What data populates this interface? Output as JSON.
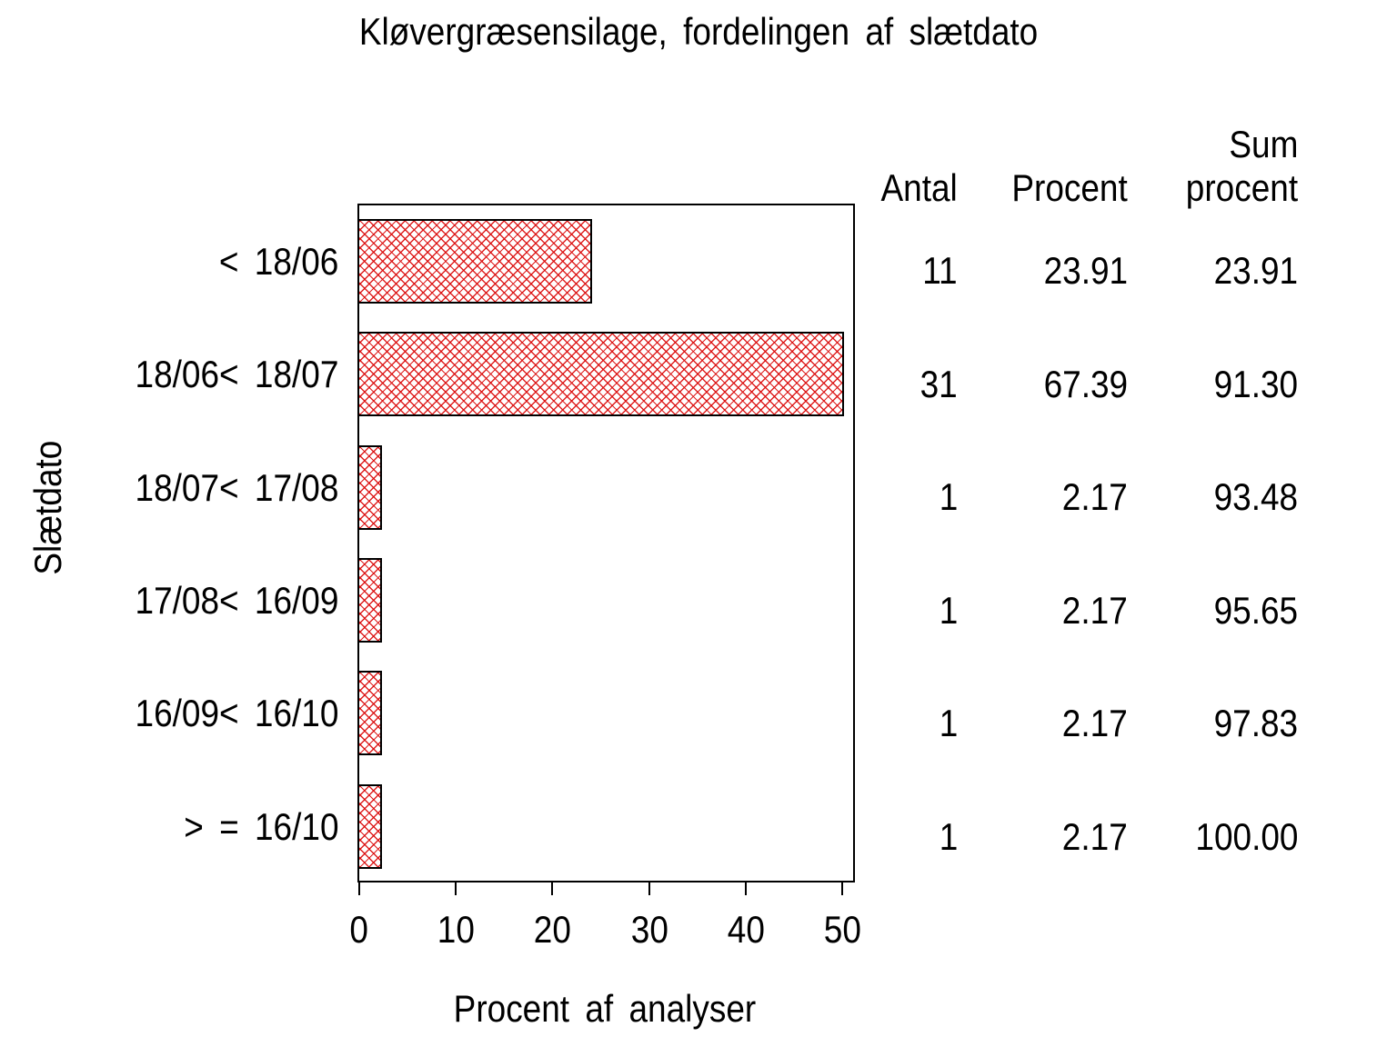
{
  "chart_data": {
    "type": "bar",
    "orientation": "horizontal",
    "title": "Kløvergræsensilage,  fordelingen  af  slætdato",
    "xlabel": "Procent  af  analyser",
    "ylabel": "Slætdato",
    "xlim": [
      0,
      50
    ],
    "x_ticks": [
      "0",
      "10",
      "20",
      "30",
      "40",
      "50"
    ],
    "grid": "off",
    "legend": "none",
    "bar_style": "red diagonal crosshatch fill with black outline",
    "bar_color": "#db0d0d",
    "categories": [
      "< 18/06",
      "18/06< 18/07",
      "18/07< 17/08",
      "17/08< 16/09",
      "16/09< 16/10",
      "> = 16/10"
    ],
    "series": [
      {
        "name": "Antal",
        "values": [
          11,
          31,
          1,
          1,
          1,
          1
        ],
        "display": [
          "11",
          "31",
          "1",
          "1",
          "1",
          "1"
        ]
      },
      {
        "name": "Procent",
        "values": [
          23.91,
          67.39,
          2.17,
          2.17,
          2.17,
          2.17
        ],
        "display": [
          "23.91",
          "67.39",
          "2.17",
          "2.17",
          "2.17",
          "2.17"
        ]
      },
      {
        "name": "Sum procent",
        "values": [
          23.91,
          91.3,
          93.48,
          95.65,
          97.83,
          100.0
        ],
        "display": [
          "23.91",
          "91.30",
          "93.48",
          "95.65",
          "97.83",
          "100.00"
        ]
      }
    ]
  },
  "table_headers": {
    "antal": "Antal",
    "procent": "Procent",
    "sum_line1": "Sum",
    "sum_line2": "procent"
  }
}
